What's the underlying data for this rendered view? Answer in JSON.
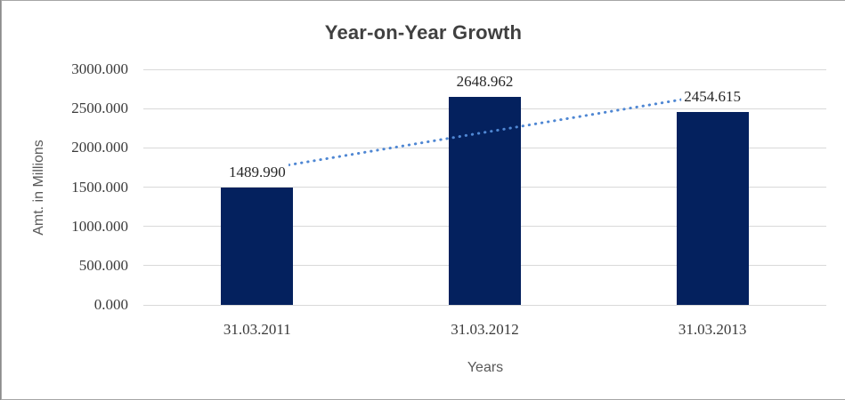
{
  "chart_data": {
    "type": "bar",
    "title": "Year-on-Year Growth",
    "xlabel": "Years",
    "ylabel": "Amt. in Millions",
    "categories": [
      "31.03.2011",
      "31.03.2012",
      "31.03.2013"
    ],
    "values": [
      1489.99,
      2648.962,
      2454.615
    ],
    "data_labels": [
      "1489.990",
      "2648.962",
      "2454.615"
    ],
    "y_tick_labels": [
      "0.000",
      "500.000",
      "1000.000",
      "1500.000",
      "2000.000",
      "2500.000",
      "3000.000"
    ],
    "ylim": [
      0,
      3000
    ],
    "grid": true,
    "legend": "none",
    "trendline": {
      "style": "dotted",
      "fit": "linear"
    },
    "colors": {
      "bar": "#04215e",
      "trendline": "#4f87d3",
      "gridline": "#d9d9d9",
      "title_text": "#404040",
      "axis_title_text": "#595959",
      "tick_text": "#3a3a3a",
      "frame_border": "#a6a6a6"
    }
  }
}
